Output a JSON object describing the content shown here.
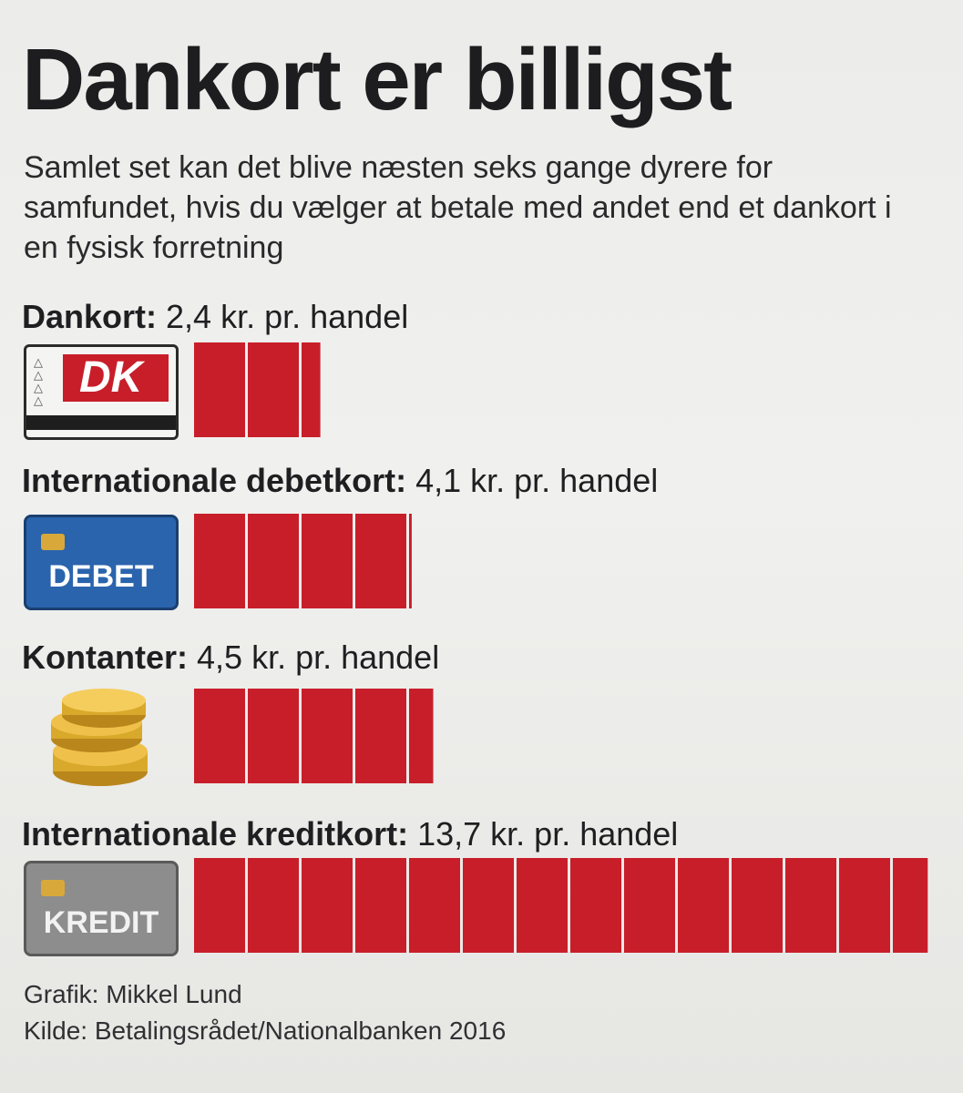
{
  "title": "Dankort er billigst",
  "subtitle": "Samlet set kan det blive næsten seks gange dyrere for samfundet, hvis du vælger at betale med andet end et dankort i en fysisk forretning",
  "rows": [
    {
      "name": "Dankort:",
      "value_text": "2,4 kr. pr. handel",
      "icon": "dankort-card-icon",
      "icon_text": "DK"
    },
    {
      "name": "Internationale debetkort:",
      "value_text": "4,1 kr. pr. handel",
      "icon": "debet-card-icon",
      "icon_text": "DEBET"
    },
    {
      "name": "Kontanter:",
      "value_text": "4,5 kr. pr. handel",
      "icon": "coins-icon",
      "icon_text": ""
    },
    {
      "name": "Internationale kreditkort:",
      "value_text": "13,7 kr. pr. handel",
      "icon": "kredit-card-icon",
      "icon_text": "KREDIT"
    }
  ],
  "footer": {
    "credit": "Grafik: Mikkel Lund",
    "source": "Kilde: Betalingsrådet/Nationalbanken 2016"
  },
  "colors": {
    "bar": "#c81e2a",
    "bar_divider": "#f3f3f1",
    "dankort_red": "#c81e2a",
    "debet_blue": "#2a64ad",
    "kredit_grey": "#8d8d8d",
    "coin_gold": "#d9a92b"
  },
  "chart_data": {
    "type": "bar",
    "orientation": "horizontal",
    "unit": "kr. pr. handel",
    "categories": [
      "Dankort",
      "Internationale debetkort",
      "Kontanter",
      "Internationale kreditkort"
    ],
    "values": [
      2.4,
      4.1,
      4.5,
      13.7
    ],
    "title": "Dankort er billigst",
    "xlabel": "",
    "ylabel": "",
    "segment_unit": 1,
    "grid": false,
    "legend": "none"
  }
}
